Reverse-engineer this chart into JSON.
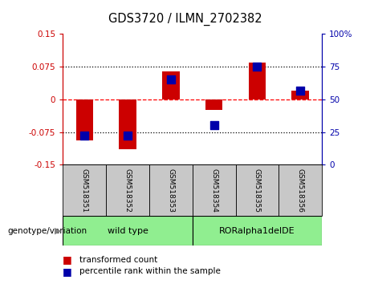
{
  "title": "GDS3720 / ILMN_2702382",
  "samples": [
    "GSM518351",
    "GSM518352",
    "GSM518353",
    "GSM518354",
    "GSM518355",
    "GSM518356"
  ],
  "red_values": [
    -0.095,
    -0.115,
    0.065,
    -0.025,
    0.085,
    0.02
  ],
  "blue_percentiles": [
    22,
    22,
    65,
    30,
    75,
    57
  ],
  "ylim_left": [
    -0.15,
    0.15
  ],
  "ylim_right": [
    0,
    100
  ],
  "left_ticks": [
    -0.15,
    -0.075,
    0,
    0.075,
    0.15
  ],
  "right_ticks": [
    0,
    25,
    50,
    75,
    100
  ],
  "left_tick_labels": [
    "-0.15",
    "-0.075",
    "0",
    "0.075",
    "0.15"
  ],
  "right_tick_labels": [
    "0",
    "25",
    "50",
    "75",
    "100%"
  ],
  "hlines": [
    -0.075,
    0,
    0.075
  ],
  "hline_styles": [
    "dotted",
    "dashed",
    "dotted"
  ],
  "hline_colors": [
    "black",
    "red",
    "black"
  ],
  "group_defs": [
    {
      "label": "wild type",
      "start": 0,
      "end": 2
    },
    {
      "label": "RORalpha1delDE",
      "start": 3,
      "end": 5
    }
  ],
  "group_color": "#90EE90",
  "sample_box_color": "#C8C8C8",
  "legend_items": [
    {
      "color": "#CC0000",
      "label": "transformed count"
    },
    {
      "color": "#0000AA",
      "label": "percentile rank within the sample"
    }
  ],
  "bar_color": "#CC0000",
  "dot_color": "#0000AA",
  "bar_width": 0.4,
  "dot_size": 50,
  "left_axis_color": "#CC0000",
  "right_axis_color": "#0000AA",
  "bg_color": "#FFFFFF",
  "plot_bg": "#FFFFFF",
  "tick_label_color_left": "#CC0000",
  "tick_label_color_right": "#0000AA"
}
